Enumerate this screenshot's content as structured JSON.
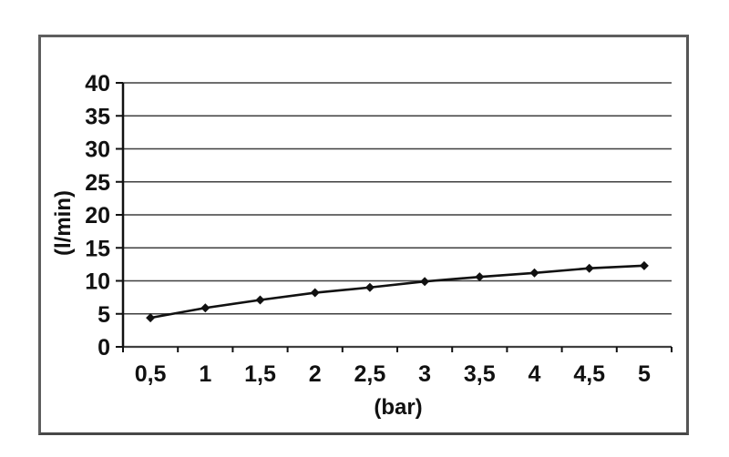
{
  "page": {
    "background": "#ffffff"
  },
  "frame": {
    "border_color": "#5e5e5e"
  },
  "chart_data": {
    "type": "line",
    "title": "",
    "xlabel": "(bar)",
    "ylabel": "(l/min)",
    "categories": [
      "0,5",
      "1",
      "1,5",
      "2",
      "2,5",
      "3",
      "3,5",
      "4",
      "4,5",
      "5"
    ],
    "values": [
      4.4,
      5.9,
      7.1,
      8.2,
      9.0,
      9.9,
      10.6,
      11.2,
      11.9,
      12.3
    ],
    "ylim": [
      0,
      40
    ],
    "ytick_step": 5,
    "yticks": [
      0,
      5,
      10,
      15,
      20,
      25,
      30,
      35,
      40
    ],
    "grid": true,
    "legend": false,
    "marker": "diamond",
    "line_color": "#111111",
    "grid_color": "#3f3f3f",
    "axis_color": "#111111",
    "text_color": "#111111"
  }
}
